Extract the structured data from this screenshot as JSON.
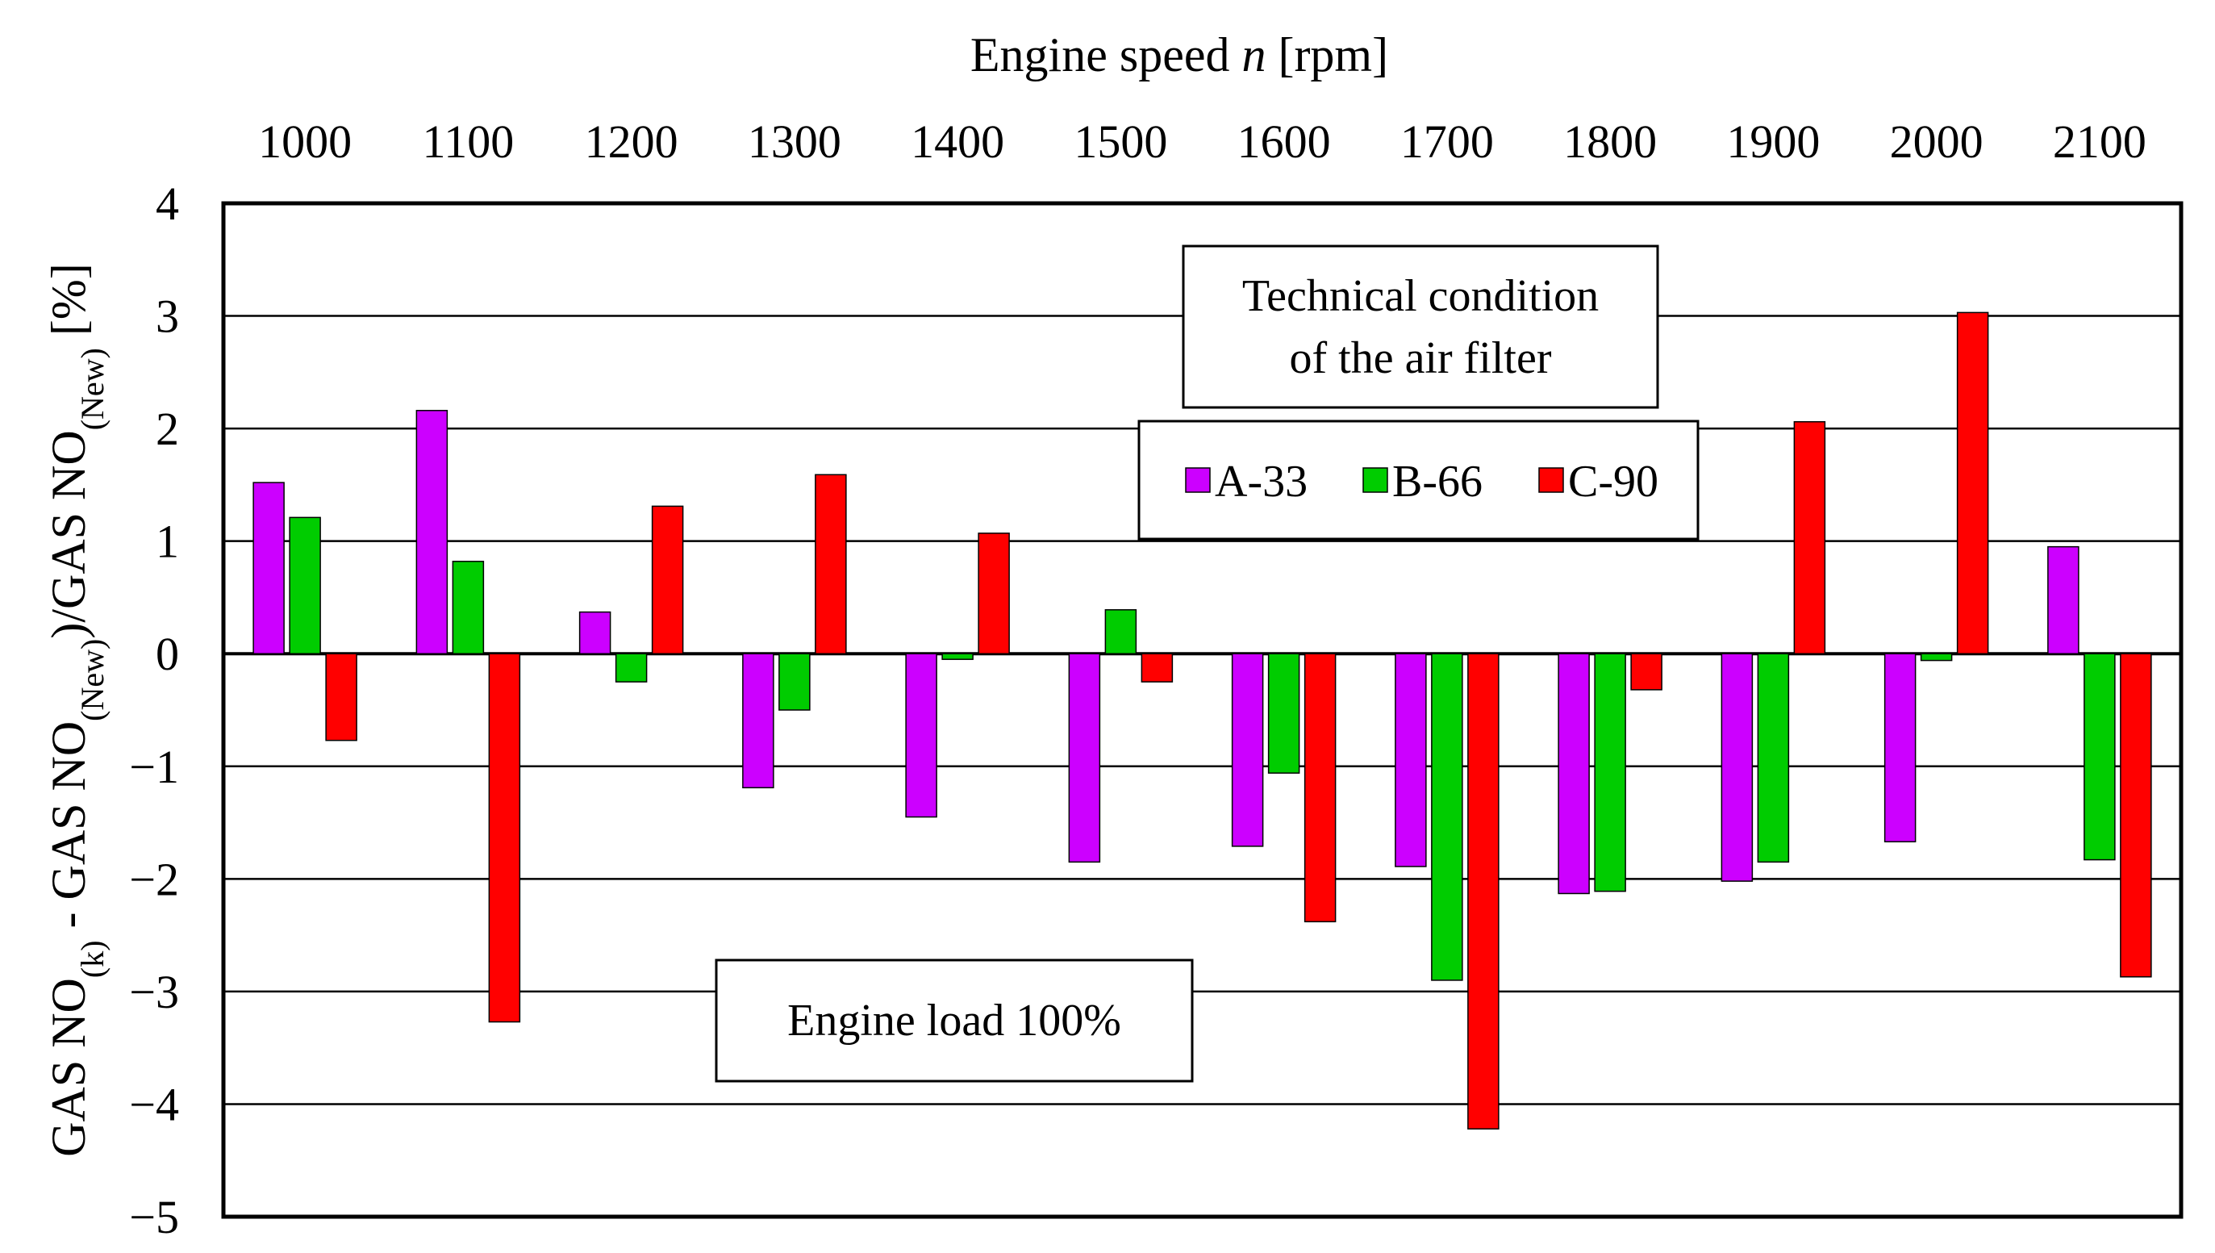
{
  "chart_data": {
    "type": "bar",
    "title": {
      "pre": "Engine speed ",
      "var": "n",
      "post": " [rpm]"
    },
    "xlabel": "Engine speed n [rpm]",
    "ylabel": {
      "p1": "GAS NO",
      "s1": "(k)",
      "p2": " - GAS NO",
      "s2": "(New)",
      "p3": ")/GAS NO",
      "s3": "(New)",
      "p4": " [%]"
    },
    "categories": [
      "1000",
      "1100",
      "1200",
      "1300",
      "1400",
      "1500",
      "1600",
      "1700",
      "1800",
      "1900",
      "2000",
      "2100"
    ],
    "ylim": [
      -5,
      4
    ],
    "yticks": [
      "4",
      "3",
      "2",
      "1",
      "0",
      "−1",
      "−2",
      "−3",
      "−4",
      "−5"
    ],
    "grid": true,
    "series": [
      {
        "name": "A-33",
        "color": "#cc00ff",
        "values": [
          1.52,
          2.16,
          0.37,
          -1.19,
          -1.45,
          -1.85,
          -1.71,
          -1.89,
          -2.13,
          -2.02,
          -1.67,
          0.95
        ]
      },
      {
        "name": "B-66",
        "color": "#00cc00",
        "values": [
          1.21,
          0.82,
          -0.25,
          -0.5,
          -0.05,
          0.39,
          -1.06,
          -2.9,
          -2.11,
          -1.85,
          -0.06,
          -1.83
        ]
      },
      {
        "name": "C-90",
        "color": "#ff0000",
        "values": [
          -0.77,
          -3.27,
          1.31,
          1.59,
          1.07,
          -0.25,
          -2.38,
          -4.22,
          -0.32,
          2.06,
          3.03,
          -2.87
        ]
      }
    ],
    "legend_title": {
      "line1": "Technical condition",
      "line2": "of the air filter"
    },
    "annotation": "Engine load 100%"
  }
}
